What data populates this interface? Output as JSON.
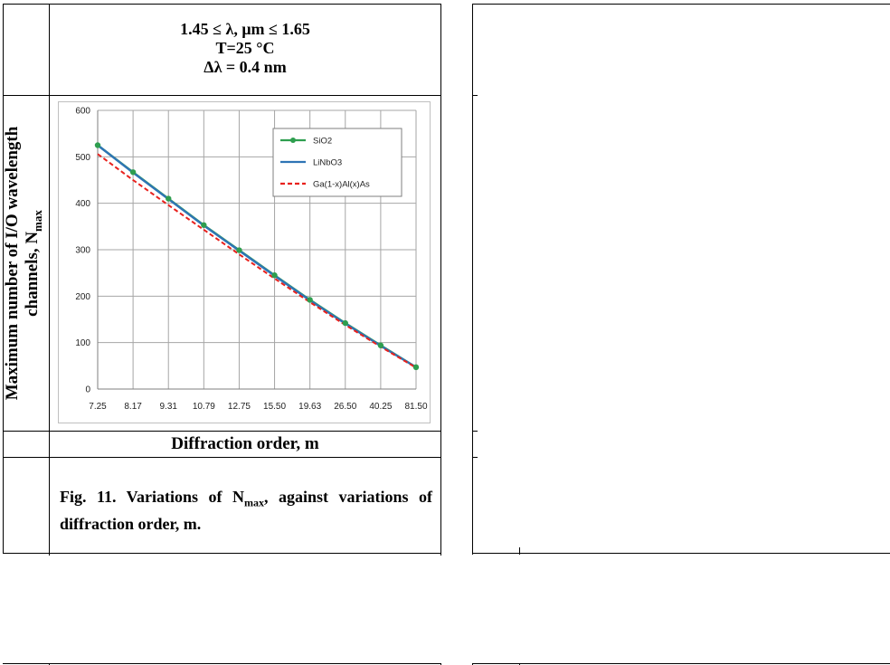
{
  "conditions": {
    "line1": "1.45 ≤ λ, μm ≤ 1.65",
    "line2": "T=25 °C",
    "line3": "Δλ = 0.4 nm"
  },
  "caption": {
    "prefix": "Fig. 11. Variations of",
    "n": "N",
    "sub": "max",
    "rest": ", against variations of diffraction order, m."
  },
  "chart_data": {
    "type": "line",
    "categories": [
      "7.25",
      "8.17",
      "9.31",
      "10.79",
      "12.75",
      "15.50",
      "19.63",
      "26.50",
      "40.25",
      "81.50"
    ],
    "ylim": [
      0,
      600
    ],
    "yticks": [
      "0",
      "100",
      "200",
      "300",
      "400",
      "500",
      "600"
    ],
    "xlabel": "Diffraction order, m",
    "ylabel": "Maximum number of I/O wavelength channels, N",
    "ylabel_sub": "max",
    "legend_position": "top-right",
    "grid": true,
    "series": [
      {
        "name": "SiO2",
        "values": [
          525,
          467,
          410,
          353,
          299,
          245,
          192,
          142,
          94,
          47
        ],
        "color": "#2e9e4f",
        "style": "solid-markers"
      },
      {
        "name": "LiNbO3",
        "values": [
          525,
          466,
          409,
          352,
          298,
          244,
          191,
          141,
          93,
          47
        ],
        "color": "#2e74b5",
        "style": "solid"
      },
      {
        "name": "Ga(1-x)Al(x)As",
        "values": [
          506,
          450,
          396,
          343,
          290,
          238,
          187,
          138,
          91,
          46
        ],
        "color": "#e8211d",
        "style": "dashed"
      }
    ]
  }
}
